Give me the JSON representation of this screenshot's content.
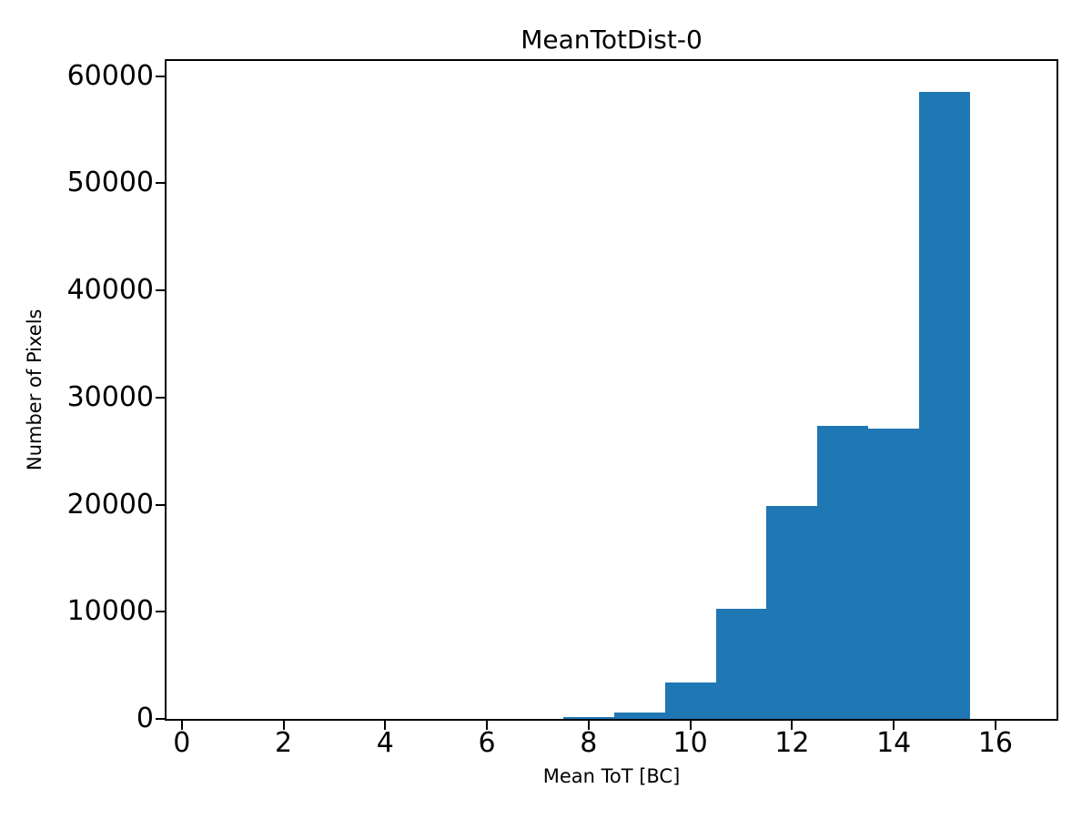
{
  "chart_data": {
    "type": "bar",
    "subtype": "histogram",
    "title": "MeanTotDist-0",
    "xlabel": "Mean ToT [BC]",
    "ylabel": "Number of Pixels",
    "bar_color": "#1f77b4",
    "axis_color": "#000000",
    "background_color": "#ffffff",
    "grid": false,
    "legend": false,
    "bin_edges": [
      7.5,
      8.5,
      9.5,
      10.5,
      11.5,
      12.5,
      13.5,
      14.5,
      15.5
    ],
    "counts": [
      150,
      570,
      3400,
      10300,
      19900,
      27400,
      27100,
      58500
    ],
    "bin_centers": [
      8,
      9,
      10,
      11,
      12,
      13,
      14,
      15
    ],
    "xticks": [
      0,
      2,
      4,
      6,
      8,
      10,
      12,
      14,
      16
    ],
    "yticks": [
      0,
      10000,
      20000,
      30000,
      40000,
      50000,
      60000
    ],
    "xlim": [
      -0.3,
      17.2
    ],
    "ylim": [
      0,
      61425
    ]
  }
}
